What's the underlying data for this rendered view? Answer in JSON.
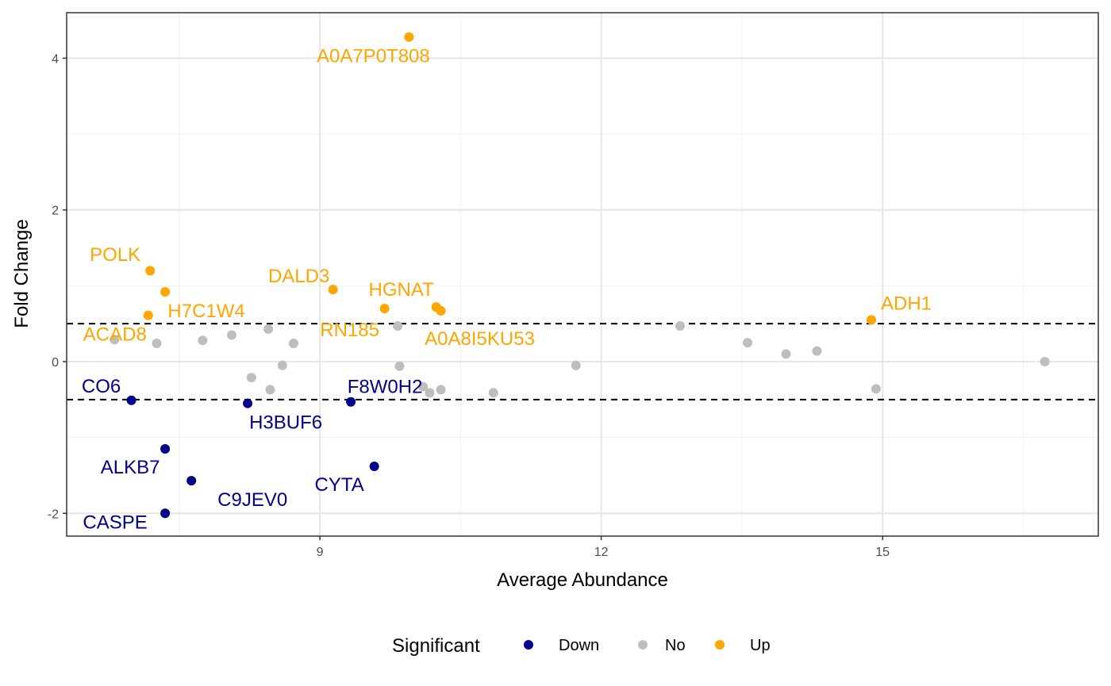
{
  "chart_data": {
    "type": "scatter",
    "xlabel": "Average Abundance",
    "ylabel": "Fold Change",
    "xlim": [
      6.3,
      17.3
    ],
    "ylim": [
      -2.3,
      4.6
    ],
    "x_ticks": [
      9,
      12,
      15
    ],
    "x_tick_labels": [
      "9",
      "12",
      "15"
    ],
    "x_minor_ticks": [
      7.5,
      10.5,
      13.5,
      16.5
    ],
    "y_ticks": [
      -2,
      0,
      2,
      4
    ],
    "y_tick_labels": [
      "-2",
      "0",
      "2",
      "4"
    ],
    "y_minor_ticks": [
      -1,
      1,
      3
    ],
    "grid": true,
    "threshold_lines": [
      0.5,
      -0.5
    ],
    "legend": {
      "title": "Significant",
      "position": "bottom",
      "entries": [
        {
          "label": "Down",
          "color": "#00008B"
        },
        {
          "label": "No",
          "color": "#BEBEBE"
        },
        {
          "label": "Up",
          "color": "#FFA500"
        }
      ]
    },
    "series": [
      {
        "name": "Down",
        "color": "#00008B",
        "points": [
          {
            "x": 6.99,
            "y": -0.51
          },
          {
            "x": 8.23,
            "y": -0.55
          },
          {
            "x": 9.33,
            "y": -0.53
          },
          {
            "x": 7.35,
            "y": -1.15
          },
          {
            "x": 7.63,
            "y": -1.57
          },
          {
            "x": 9.58,
            "y": -1.38
          },
          {
            "x": 7.35,
            "y": -2.0
          }
        ]
      },
      {
        "name": "No",
        "color": "#BEBEBE",
        "points": [
          {
            "x": 6.81,
            "y": 0.29
          },
          {
            "x": 7.26,
            "y": 0.24
          },
          {
            "x": 7.75,
            "y": 0.28
          },
          {
            "x": 8.06,
            "y": 0.35
          },
          {
            "x": 8.45,
            "y": 0.43
          },
          {
            "x": 8.72,
            "y": 0.24
          },
          {
            "x": 8.27,
            "y": -0.21
          },
          {
            "x": 8.47,
            "y": -0.37
          },
          {
            "x": 8.6,
            "y": -0.05
          },
          {
            "x": 9.83,
            "y": 0.47
          },
          {
            "x": 9.85,
            "y": -0.06
          },
          {
            "x": 10.1,
            "y": -0.33
          },
          {
            "x": 10.17,
            "y": -0.41
          },
          {
            "x": 10.29,
            "y": -0.37
          },
          {
            "x": 10.85,
            "y": -0.41
          },
          {
            "x": 11.73,
            "y": -0.05
          },
          {
            "x": 12.84,
            "y": 0.47
          },
          {
            "x": 13.56,
            "y": 0.25
          },
          {
            "x": 13.97,
            "y": 0.1
          },
          {
            "x": 14.3,
            "y": 0.14
          },
          {
            "x": 14.93,
            "y": -0.36
          },
          {
            "x": 16.73,
            "y": 0.0
          }
        ]
      },
      {
        "name": "Up",
        "color": "#FFA500",
        "points": [
          {
            "x": 9.95,
            "y": 4.28
          },
          {
            "x": 7.19,
            "y": 1.2
          },
          {
            "x": 7.35,
            "y": 0.92
          },
          {
            "x": 7.17,
            "y": 0.61
          },
          {
            "x": 9.14,
            "y": 0.95
          },
          {
            "x": 9.69,
            "y": 0.7
          },
          {
            "x": 10.24,
            "y": 0.72
          },
          {
            "x": 10.29,
            "y": 0.67
          },
          {
            "x": 14.88,
            "y": 0.55
          }
        ]
      }
    ],
    "annotations": [
      {
        "text": "A0A7P0T808",
        "x": 9.95,
        "y": 4.28,
        "series": "Up"
      },
      {
        "text": "POLK",
        "x": 7.19,
        "y": 1.2,
        "series": "Up"
      },
      {
        "text": "H7C1W4",
        "x": 7.35,
        "y": 0.92,
        "series": "Up"
      },
      {
        "text": "ACAD8",
        "x": 7.17,
        "y": 0.61,
        "series": "Up"
      },
      {
        "text": "DALD3",
        "x": 9.14,
        "y": 0.95,
        "series": "Up"
      },
      {
        "text": "HGNAT",
        "x": 10.24,
        "y": 0.72,
        "series": "Up"
      },
      {
        "text": "RN185",
        "x": 9.69,
        "y": 0.7,
        "series": "Up"
      },
      {
        "text": "A0A8I5KU53",
        "x": 10.29,
        "y": 0.67,
        "series": "Up"
      },
      {
        "text": "ADH1",
        "x": 14.88,
        "y": 0.55,
        "series": "Up"
      },
      {
        "text": "CO6",
        "x": 6.99,
        "y": -0.51,
        "series": "Down"
      },
      {
        "text": "F8W0H2",
        "x": 9.33,
        "y": -0.53,
        "series": "Down"
      },
      {
        "text": "H3BUF6",
        "x": 8.23,
        "y": -0.55,
        "series": "Down"
      },
      {
        "text": "ALKB7",
        "x": 7.35,
        "y": -1.15,
        "series": "Down"
      },
      {
        "text": "C9JEV0",
        "x": 7.63,
        "y": -1.57,
        "series": "Down"
      },
      {
        "text": "CYTA",
        "x": 9.58,
        "y": -1.38,
        "series": "Down"
      },
      {
        "text": "CASPE",
        "x": 7.35,
        "y": -2.0,
        "series": "Down"
      }
    ]
  }
}
